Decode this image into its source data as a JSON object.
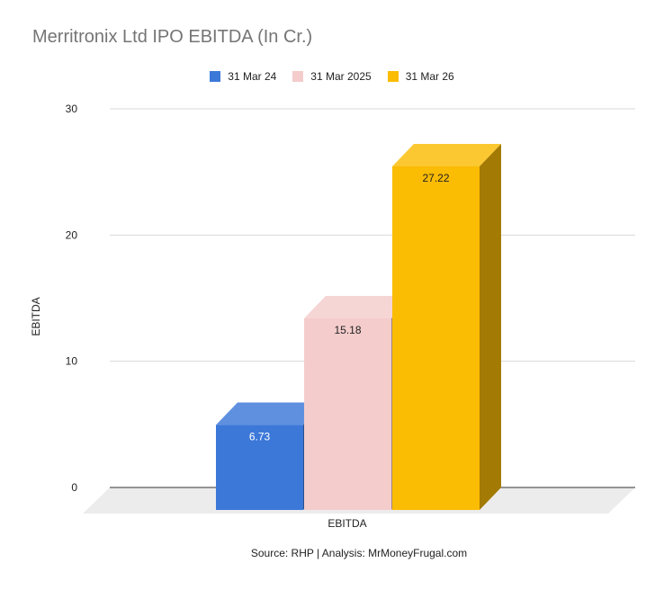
{
  "chart_data": {
    "type": "bar",
    "title": "Merritronix Ltd IPO EBITDA (In Cr.)",
    "xlabel": "EBITDA",
    "ylabel": "EBITDA",
    "categories": [
      "EBITDA"
    ],
    "series": [
      {
        "name": "31 Mar 24",
        "values": [
          6.73
        ],
        "color": "#3c78d8",
        "label": "6.73"
      },
      {
        "name": "31 Mar 2025",
        "values": [
          15.18
        ],
        "color": "#f4cccc",
        "label": "15.18"
      },
      {
        "name": "31 Mar 26",
        "values": [
          27.22
        ],
        "color": "#fbbc04",
        "label": "27.22"
      }
    ],
    "ylim": [
      0,
      30
    ],
    "yticks": [
      "0",
      "10",
      "20",
      "30"
    ],
    "grid": true,
    "legend_position": "top",
    "source": "Source: RHP | Analysis: MrMoneyFrugal.com"
  }
}
